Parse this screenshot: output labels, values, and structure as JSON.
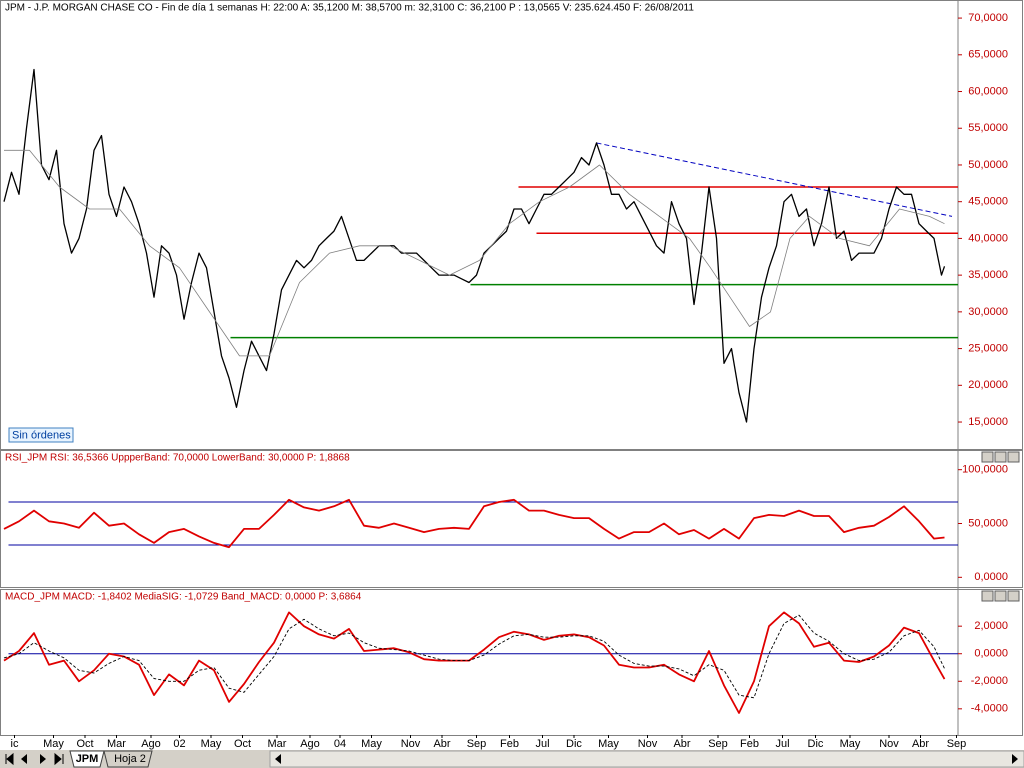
{
  "chart_data": [
    {
      "type": "line",
      "title": "JPM - J.P. MORGAN CHASE CO - Fin de día 1 semanas H: 22:00  A: 35,1200  M: 38,5700  m: 32,3100  C: 36,2100  P : 13,0565  V: 235.624.450  F: 26/08/2011",
      "title_color": "#000000",
      "annotation": "Sin órdenes",
      "xlim": [
        0,
        636
      ],
      "ylim": [
        11.6,
        71.1
      ],
      "yticks": [
        {
          "value": 15,
          "label": "15,0000"
        },
        {
          "value": 20,
          "label": "20,0000"
        },
        {
          "value": 25,
          "label": "25,0000"
        },
        {
          "value": 30,
          "label": "30,0000"
        },
        {
          "value": 35,
          "label": "35,0000"
        },
        {
          "value": 40,
          "label": "40,0000"
        },
        {
          "value": 45,
          "label": "45,0000"
        },
        {
          "value": 50,
          "label": "50,0000"
        },
        {
          "value": 55,
          "label": "55,0000"
        },
        {
          "value": 60,
          "label": "60,0000"
        },
        {
          "value": 65,
          "label": "65,0000"
        },
        {
          "value": 70,
          "label": "70,0000"
        }
      ],
      "series": [
        {
          "color": "#000000",
          "x": [
            0,
            5,
            10,
            15,
            20,
            25,
            30,
            35,
            40,
            45,
            50,
            55,
            60,
            65,
            70,
            75,
            80,
            85,
            90,
            95,
            100,
            105,
            110,
            115,
            120,
            125,
            130,
            135,
            140,
            145,
            150,
            155,
            160,
            165,
            170,
            175,
            180,
            185,
            190,
            195,
            200,
            205,
            210,
            215,
            220,
            225,
            230,
            235,
            240,
            245,
            250,
            255,
            260,
            265,
            270,
            275,
            280,
            285,
            290,
            295,
            300,
            305,
            310,
            315,
            320,
            325,
            330,
            335,
            340,
            345,
            350,
            355,
            360,
            365,
            370,
            375,
            380,
            385,
            390,
            395,
            400,
            405,
            410,
            415,
            420,
            425,
            430,
            435,
            440,
            445,
            450,
            455,
            460,
            465,
            470,
            475,
            480,
            485,
            490,
            495,
            500,
            505,
            510,
            515,
            520,
            525,
            530,
            535,
            540,
            545,
            550,
            555,
            560,
            565,
            570,
            575,
            580,
            585,
            590,
            595,
            600,
            605,
            610,
            615,
            620,
            625,
            627
          ],
          "values": [
            45,
            49,
            46,
            55,
            63,
            50,
            48,
            52,
            42,
            38,
            40,
            44,
            52,
            54,
            46,
            43,
            47,
            45,
            42,
            38,
            32,
            39,
            38,
            35,
            29,
            34,
            38,
            36,
            30,
            24,
            21,
            17,
            22,
            26,
            24,
            22,
            27,
            33,
            35,
            37,
            36,
            37,
            39,
            40,
            41,
            43,
            40,
            37,
            37,
            38,
            39,
            39,
            39,
            38,
            38,
            38,
            37,
            36,
            35,
            35,
            35,
            34.5,
            34,
            35,
            38,
            39,
            40,
            41,
            44,
            44,
            42,
            44,
            46,
            46,
            47,
            48,
            49,
            51,
            50,
            53,
            50,
            46,
            46,
            44,
            45,
            43,
            41,
            39,
            38,
            45,
            42,
            40,
            31,
            38,
            47,
            40,
            23,
            25,
            19,
            15,
            25,
            32,
            36,
            39,
            45,
            46,
            43,
            44,
            39,
            42,
            47,
            40,
            41,
            37,
            38,
            38,
            38,
            40,
            44,
            47,
            46,
            46,
            42,
            41,
            40,
            35,
            36.21
          ]
        },
        {
          "color": "#808080",
          "x": [
            0,
            17,
            37,
            57,
            77,
            97,
            117,
            137,
            157,
            177,
            197,
            217,
            237,
            257,
            277,
            297,
            317,
            337,
            357,
            377,
            397,
            417,
            437,
            457,
            471,
            484,
            497,
            511,
            524,
            537,
            557,
            577,
            597,
            617,
            627
          ],
          "values": [
            52,
            52,
            47,
            44,
            44,
            39,
            36,
            30,
            24,
            24,
            34,
            38,
            39,
            39,
            37,
            35,
            37,
            42,
            45,
            47,
            50,
            46,
            43,
            40,
            36,
            32,
            28,
            30,
            40,
            43,
            40,
            39,
            44,
            43,
            42
          ]
        }
      ],
      "levels": [
        {
          "value": 47,
          "from": 343,
          "color": "#e00000"
        },
        {
          "value": 40.7,
          "from": 355,
          "color": "#e00000"
        },
        {
          "value": 33.7,
          "from": 311,
          "color": "#008000"
        },
        {
          "value": 26.5,
          "from": 151,
          "color": "#008000"
        }
      ],
      "trendline": {
        "x": [
          395,
          632
        ],
        "values": [
          53,
          43
        ],
        "color": "#0000c0"
      }
    },
    {
      "type": "line",
      "title": "RSI_JPM  RSI: 36,5366  UppperBand: 70,0000  LowerBand: 30,0000  P: 1,8868",
      "title_color": "#c00000",
      "xlim": [
        0,
        636
      ],
      "ylim": [
        -9,
        109
      ],
      "yticks": [
        {
          "value": 0,
          "label": "0,0000"
        },
        {
          "value": 50,
          "label": "50,0000"
        },
        {
          "value": 100,
          "label": "100,0000"
        }
      ],
      "series": [
        {
          "color": "#e00000",
          "x": [
            0,
            10,
            20,
            30,
            40,
            50,
            60,
            70,
            80,
            90,
            100,
            110,
            120,
            130,
            140,
            150,
            160,
            170,
            180,
            190,
            200,
            210,
            220,
            230,
            240,
            250,
            260,
            270,
            280,
            290,
            300,
            310,
            320,
            330,
            340,
            350,
            360,
            370,
            380,
            390,
            400,
            410,
            420,
            430,
            440,
            450,
            460,
            470,
            480,
            490,
            500,
            510,
            520,
            530,
            540,
            550,
            560,
            570,
            580,
            590,
            600,
            610,
            620,
            627
          ],
          "values": [
            45,
            52,
            62,
            52,
            50,
            46,
            60,
            48,
            50,
            40,
            32,
            42,
            45,
            38,
            32,
            28,
            45,
            45,
            58,
            72,
            65,
            62,
            66,
            72,
            48,
            46,
            50,
            46,
            42,
            45,
            46,
            45,
            66,
            70,
            72,
            62,
            62,
            58,
            55,
            55,
            45,
            36,
            42,
            42,
            50,
            40,
            44,
            36,
            45,
            36,
            55,
            58,
            57,
            62,
            57,
            57,
            42,
            46,
            48,
            56,
            66,
            52,
            36,
            37
          ]
        }
      ],
      "levels": [
        {
          "value": 70,
          "from": 3,
          "color": "#0000a0"
        },
        {
          "value": 30,
          "from": 3,
          "color": "#0000a0"
        }
      ]
    },
    {
      "type": "line",
      "title": "MACD_JPM  MACD: -1,8402  MediaSIG: -1,0729  Band_MACD: 0,0000  P: 3,6864",
      "title_color": "#c00000",
      "xlim": [
        0,
        636
      ],
      "ylim": [
        -5.9,
        3.9
      ],
      "yticks": [
        {
          "value": -4,
          "label": "-4,0000"
        },
        {
          "value": -2,
          "label": "-2,0000"
        },
        {
          "value": 0,
          "label": "0,0000"
        },
        {
          "value": 2,
          "label": "2,0000"
        }
      ],
      "xticks": [
        {
          "value": 7,
          "label": "ic"
        },
        {
          "value": 33,
          "label": "May"
        },
        {
          "value": 54,
          "label": "Oct"
        },
        {
          "value": 75,
          "label": "Mar"
        },
        {
          "value": 98,
          "label": "Ago"
        },
        {
          "value": 117,
          "label": "02"
        },
        {
          "value": 138,
          "label": "May"
        },
        {
          "value": 159,
          "label": "Oct"
        },
        {
          "value": 182,
          "label": "Mar"
        },
        {
          "value": 204,
          "label": "Ago"
        },
        {
          "value": 224,
          "label": "04"
        },
        {
          "value": 245,
          "label": "May"
        },
        {
          "value": 271,
          "label": "Nov"
        },
        {
          "value": 292,
          "label": "Abr"
        },
        {
          "value": 315,
          "label": "Sep"
        },
        {
          "value": 337,
          "label": "Feb"
        },
        {
          "value": 359,
          "label": "Jul"
        },
        {
          "value": 380,
          "label": "Dic"
        },
        {
          "value": 403,
          "label": "May"
        },
        {
          "value": 429,
          "label": "Nov"
        },
        {
          "value": 452,
          "label": "Abr"
        },
        {
          "value": 476,
          "label": "Sep"
        },
        {
          "value": 497,
          "label": "Feb"
        },
        {
          "value": 519,
          "label": "Jul"
        },
        {
          "value": 541,
          "label": "Dic"
        },
        {
          "value": 564,
          "label": "May"
        },
        {
          "value": 590,
          "label": "Nov"
        },
        {
          "value": 611,
          "label": "Abr"
        },
        {
          "value": 635,
          "label": "Sep"
        }
      ],
      "series": [
        {
          "color": "#e00000",
          "x": [
            0,
            10,
            20,
            30,
            40,
            50,
            60,
            70,
            80,
            90,
            100,
            110,
            120,
            130,
            140,
            150,
            160,
            170,
            180,
            190,
            200,
            210,
            220,
            230,
            240,
            250,
            260,
            270,
            280,
            290,
            300,
            310,
            320,
            330,
            340,
            350,
            360,
            370,
            380,
            390,
            400,
            410,
            420,
            430,
            440,
            450,
            460,
            470,
            480,
            490,
            500,
            510,
            520,
            530,
            540,
            550,
            560,
            570,
            580,
            590,
            600,
            610,
            620,
            627
          ],
          "values": [
            -0.5,
            0.2,
            1.5,
            -0.8,
            -0.5,
            -2,
            -1.2,
            0,
            -0.2,
            -0.8,
            -3,
            -1.5,
            -2.3,
            -0.5,
            -1.2,
            -3.5,
            -2.2,
            -0.6,
            0.8,
            3,
            2,
            1.4,
            1.1,
            1.8,
            0.2,
            0.3,
            0.4,
            0.1,
            -0.4,
            -0.5,
            -0.5,
            -0.5,
            0.3,
            1.2,
            1.6,
            1.4,
            1,
            1.3,
            1.4,
            1.2,
            0.6,
            -0.8,
            -1,
            -1,
            -0.8,
            -1.5,
            -2,
            0.2,
            -2.3,
            -4.3,
            -2,
            2,
            3,
            2.2,
            0.5,
            0.8,
            -0.5,
            -0.6,
            -0.2,
            0.6,
            1.9,
            1.5,
            -0.5,
            -1.84
          ]
        },
        {
          "color": "#000000",
          "style": "dashed",
          "x": [
            0,
            10,
            20,
            30,
            40,
            50,
            60,
            70,
            80,
            90,
            100,
            110,
            120,
            130,
            140,
            150,
            160,
            170,
            180,
            190,
            200,
            210,
            220,
            230,
            240,
            250,
            260,
            270,
            280,
            290,
            300,
            310,
            320,
            330,
            340,
            350,
            360,
            370,
            380,
            390,
            400,
            410,
            420,
            430,
            440,
            450,
            460,
            470,
            480,
            490,
            500,
            510,
            520,
            530,
            540,
            550,
            560,
            570,
            580,
            590,
            600,
            610,
            620,
            627
          ],
          "values": [
            -0.3,
            0,
            0.8,
            0.2,
            -0.3,
            -1.2,
            -1.4,
            -0.7,
            -0.2,
            -0.5,
            -1.8,
            -2,
            -2,
            -1.2,
            -1,
            -2.5,
            -2.8,
            -1.5,
            -0.2,
            1.8,
            2.5,
            1.8,
            1.3,
            1.5,
            0.8,
            0.4,
            0.3,
            0.2,
            -0.1,
            -0.4,
            -0.5,
            -0.5,
            -0.1,
            0.7,
            1.3,
            1.4,
            1.2,
            1.2,
            1.3,
            1.3,
            0.9,
            -0.1,
            -0.7,
            -0.9,
            -0.9,
            -1.1,
            -1.6,
            -0.8,
            -1.2,
            -3,
            -3.2,
            0,
            2.2,
            2.8,
            1.5,
            0.9,
            0,
            -0.5,
            -0.4,
            0.1,
            1.3,
            1.7,
            0.5,
            -1.07
          ]
        }
      ],
      "levels": [
        {
          "value": 0,
          "from": 3,
          "color": "#0000a0"
        }
      ]
    }
  ],
  "tabs": [
    "JPM",
    "Hoja 2"
  ]
}
